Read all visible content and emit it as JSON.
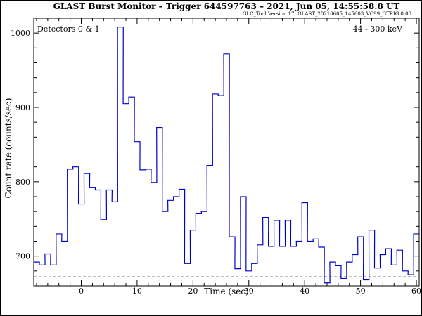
{
  "chart_data": {
    "type": "line",
    "style": "step",
    "title": "GLAST Burst Monitor  –  Trigger 644597763  –  2021, Jun 05, 14:55:58.8 UT",
    "subtitle": "GLC_Tool Version 17; GLAST_20210605_145603_VC99_GTRIG.0.00",
    "xlabel": "Time (sec)",
    "ylabel": "Count rate (counts/sec)",
    "annotation_left": "Detectors 0 & 1",
    "annotation_right": "44 - 300 keV",
    "xlim": [
      -8.5,
      60.5
    ],
    "ylim": [
      660,
      1020
    ],
    "xticks": [
      0,
      10,
      20,
      30,
      40,
      50,
      60
    ],
    "yticks": [
      700,
      800,
      900,
      1000
    ],
    "xtick_labels": [
      "0",
      "10",
      "20",
      "30",
      "40",
      "50",
      "60"
    ],
    "ytick_labels": [
      "700",
      "800",
      "900",
      "1000"
    ],
    "background_level": 672,
    "line_color": "#0000cc",
    "bin_width": 1.024,
    "series": [
      {
        "x": [
          -8.5,
          -7.5,
          -6.5,
          -5.5,
          -4.5,
          -3.5,
          -2.5,
          -1.5,
          -0.5,
          0.5,
          1.5,
          2.5,
          3.5,
          4.5,
          5.5,
          6.5,
          7.5,
          8.5,
          9.5,
          10.5,
          11.5,
          12.5,
          13.5,
          14.5,
          15.5,
          16.5,
          17.5,
          18.5,
          19.5,
          20.5,
          21.5,
          22.5,
          23.5,
          24.5,
          25.5,
          26.5,
          27.5,
          28.5,
          29.5,
          30.5,
          31.5,
          32.5,
          33.5,
          34.5,
          35.5,
          36.5,
          37.5,
          38.5,
          39.5,
          40.5,
          41.5,
          42.5,
          43.5,
          44.5,
          45.5,
          46.5,
          47.5,
          48.5,
          49.5,
          50.5,
          51.5,
          52.5,
          53.5,
          54.5,
          55.5,
          56.5,
          57.5,
          58.5,
          59.5
        ],
        "values": [
          692,
          688,
          703,
          688,
          730,
          720,
          817,
          820,
          770,
          811,
          792,
          789,
          749,
          789,
          773,
          1008,
          905,
          914,
          854,
          816,
          817,
          799,
          873,
          760,
          775,
          780,
          790,
          690,
          735,
          757,
          760,
          822,
          918,
          916,
          972,
          726,
          683,
          780,
          680,
          690,
          715,
          752,
          713,
          748,
          713,
          748,
          713,
          720,
          772,
          720,
          723,
          712,
          664,
          692,
          687,
          670,
          692,
          702,
          726,
          668,
          735,
          684,
          702,
          710,
          688,
          708,
          680,
          675,
          730
        ]
      }
    ]
  }
}
